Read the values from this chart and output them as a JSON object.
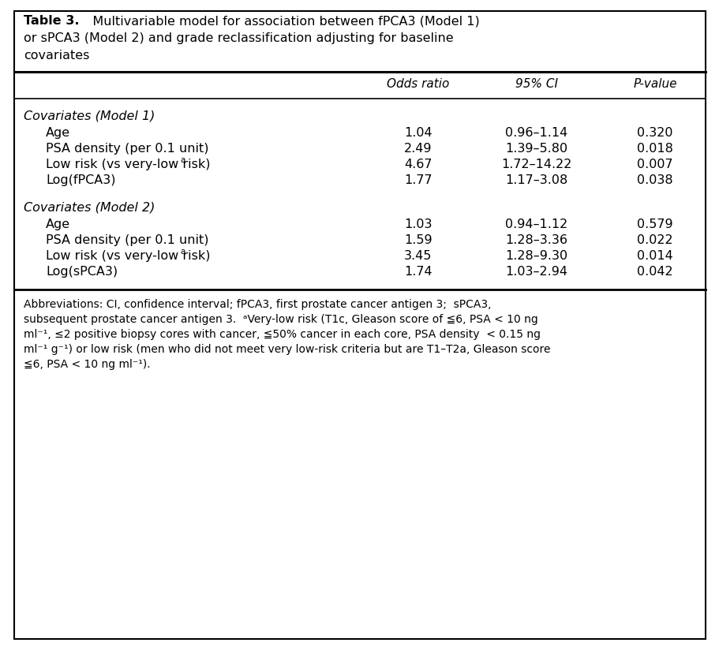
{
  "title_bold": "Table 3.",
  "title_rest": "Multivariable model for association between fPCA3 (Model 1)\nor sPCA3 (Model 2) and grade reclassification adjusting for baseline\ncovariates",
  "col_headers": [
    "",
    "Odds ratio",
    "95% CI",
    "P-value"
  ],
  "sections": [
    {
      "section_title": "Covariates (Model 1)",
      "rows": [
        {
          "label": "Age",
          "superscript": "",
          "or": "1.04",
          "ci": "0.96–1.14",
          "pval": "0.320"
        },
        {
          "label": "PSA density (per 0.1 unit)",
          "superscript": "",
          "or": "2.49",
          "ci": "1.39–5.80",
          "pval": "0.018"
        },
        {
          "label": "Low risk (vs very-low risk)",
          "superscript": "a",
          "or": "4.67",
          "ci": "1.72–14.22",
          "pval": "0.007"
        },
        {
          "label": "Log(fPCA3)",
          "superscript": "",
          "or": "1.77",
          "ci": "1.17–3.08",
          "pval": "0.038"
        }
      ]
    },
    {
      "section_title": "Covariates (Model 2)",
      "rows": [
        {
          "label": "Age",
          "superscript": "",
          "or": "1.03",
          "ci": "0.94–1.12",
          "pval": "0.579"
        },
        {
          "label": "PSA density (per 0.1 unit)",
          "superscript": "",
          "or": "1.59",
          "ci": "1.28–3.36",
          "pval": "0.022"
        },
        {
          "label": "Low risk (vs very-low risk)",
          "superscript": "a",
          "or": "3.45",
          "ci": "1.28–9.30",
          "pval": "0.014"
        },
        {
          "label": "Log(sPCA3)",
          "superscript": "",
          "or": "1.74",
          "ci": "1.03–2.94",
          "pval": "0.042"
        }
      ]
    }
  ],
  "footnote_text": "Abbreviations: CI, confidence interval; fPCA3, first prostate cancer antigen 3;  sPCA3, subsequent prostate cancer antigen 3.  ᵃVery-low risk (T1c, Gleason score of ≦6, PSA < 10 ng ml⁻¹, ≤2 positive biopsy cores with cancer, ≦50% cancer in each core, PSA density  < 0.15 ng ml⁻¹ g⁻¹) or low risk (men who did not meet very low-risk criteria but are T1–T2a, Gleason score ≦6, PSA < 10 ng ml⁻¹).",
  "bg_color": "#ffffff",
  "border_color": "#000000",
  "text_color": "#000000"
}
